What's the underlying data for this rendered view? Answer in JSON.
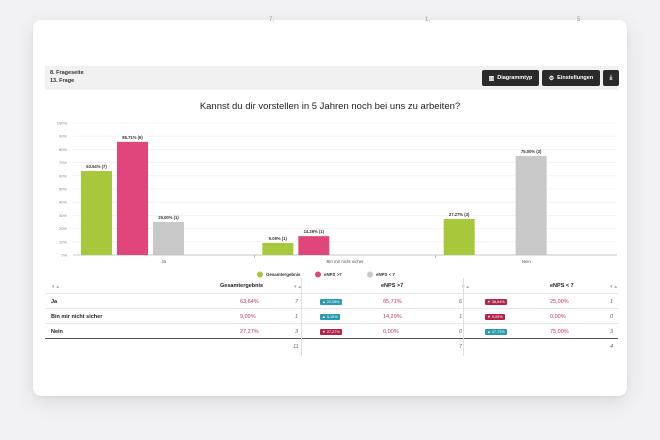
{
  "top_fragments": [
    "7,",
    "1,",
    "5"
  ],
  "header": {
    "page_label": "8. Frageseite",
    "question_label": "13. Frage",
    "chart_type_button": "Diagrammtyp",
    "settings_button": "Einstellungen"
  },
  "chart_data": {
    "type": "bar",
    "title": "Kannst du dir vorstellen in 5 Jahren noch bei uns zu arbeiten?",
    "categories": [
      "Ja",
      "Bin mir nicht sicher",
      "Nein"
    ],
    "series": [
      {
        "name": "Gesamtergebnis",
        "color": "#a7c83a",
        "values": [
          63.64,
          9.09,
          27.27
        ],
        "labels": [
          "63.64% (7)",
          "9.09% (1)",
          "27.27% (3)"
        ]
      },
      {
        "name": "eNPS >7",
        "color": "#e0467c",
        "values": [
          85.71,
          14.29,
          0
        ],
        "labels": [
          "85.71% (6)",
          "14.29% (1)",
          ""
        ]
      },
      {
        "name": "eNPS < 7",
        "color": "#c8c8c8",
        "values": [
          25.0,
          0,
          75.0
        ],
        "labels": [
          "25.00% (1)",
          "",
          "75.00% (3)"
        ]
      }
    ],
    "ylim": [
      0,
      100
    ],
    "yticks": [
      "0%",
      "10%",
      "20%",
      "30%",
      "40%",
      "50%",
      "60%",
      "70%",
      "80%",
      "90%",
      "100%"
    ],
    "grid": true,
    "legend_position": "bottom"
  },
  "table": {
    "columns": [
      "Gesamtergebnis",
      "eNPS >7",
      "eNPS < 7"
    ],
    "sort_icon": "▼▲",
    "rows": [
      {
        "label": "Ja",
        "g_pct": "63,64%",
        "g_n": "7",
        "e7_badge": "▲ 22,08%",
        "e7_badge_color": "teal",
        "e7_pct": "85,71%",
        "e7_n": "6",
        "el7_badge": "▼ 38,64%",
        "el7_badge_color": "red",
        "el7_pct": "25,00%",
        "el7_n": "1"
      },
      {
        "label": "Bin mir nicht sicher",
        "g_pct": "9,09%",
        "g_n": "1",
        "e7_badge": "▲ 5,19%",
        "e7_badge_color": "teal",
        "e7_pct": "14,29%",
        "e7_n": "1",
        "el7_badge": "▼ 9,09%",
        "el7_badge_color": "red",
        "el7_pct": "0,00%",
        "el7_n": "0"
      },
      {
        "label": "Nein",
        "g_pct": "27,27%",
        "g_n": "3",
        "e7_badge": "▼ 27,27%",
        "e7_badge_color": "red",
        "e7_pct": "0,00%",
        "e7_n": "0",
        "el7_badge": "▲ 47,73%",
        "el7_badge_color": "teal",
        "el7_pct": "75,00%",
        "el7_n": "3"
      }
    ],
    "totals": {
      "g_n": "11",
      "e7_n": "7",
      "el7_n": "4"
    }
  }
}
